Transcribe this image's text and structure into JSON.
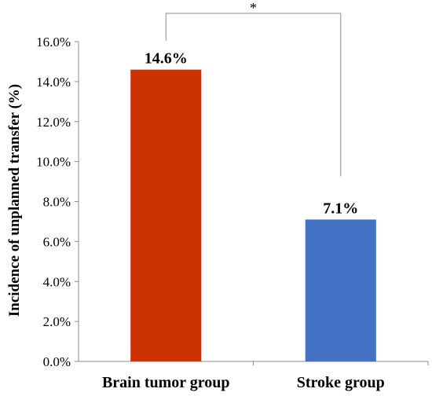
{
  "chart_data": {
    "type": "bar",
    "categories": [
      "Brain tumor group",
      "Stroke group"
    ],
    "values": [
      14.6,
      7.1
    ],
    "data_labels": [
      "14.6%",
      "7.1%"
    ],
    "colors": [
      "#CC3300",
      "#4472C4"
    ],
    "title": "",
    "xlabel": "",
    "ylabel": "Incidence of unplanned transfer (%)",
    "ylim": [
      0,
      16
    ],
    "yticks": [
      "0.0%",
      "2.0%",
      "4.0%",
      "6.0%",
      "8.0%",
      "10.0%",
      "12.0%",
      "14.0%",
      "16.0%"
    ],
    "grid": false,
    "legend": "none",
    "significance": {
      "between": [
        "Brain tumor group",
        "Stroke group"
      ],
      "label": "*"
    }
  }
}
